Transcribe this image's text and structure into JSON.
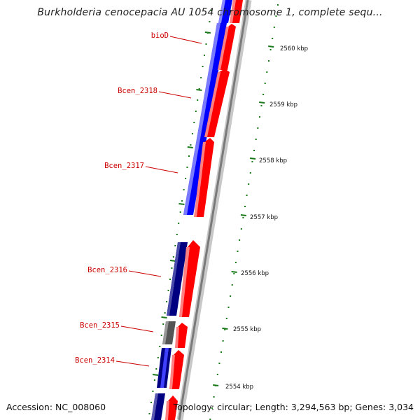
{
  "title": "Burkholderia cenocepacia AU 1054 chromosome 1, complete sequ...",
  "accession": "Accession: NC_008060",
  "summary": "Topology: circular; Length: 3,294,563 bp; Genes: 3,034",
  "colors": {
    "forward_gene": "#ff0000",
    "reverse_gene_light": "#0000ff",
    "reverse_gene_dark": "#000080",
    "grey_gene": "#555555",
    "backbone": "#9a9a9a",
    "ticks": "#1a7a1a",
    "label_text": "#cc0000",
    "label_line": "#cc0000"
  },
  "scale": {
    "ticks": [
      {
        "label": "2560 kbp"
      },
      {
        "label": "2559 kbp"
      },
      {
        "label": "2558 kbp"
      },
      {
        "label": "2557 kbp"
      },
      {
        "label": "2556 kbp"
      },
      {
        "label": "2555 kbp"
      },
      {
        "label": "2554 kbp"
      }
    ]
  },
  "gene_labels": [
    {
      "name": "bioD"
    },
    {
      "name": "Bcen_2318"
    },
    {
      "name": "Bcen_2317"
    },
    {
      "name": "Bcen_2316"
    },
    {
      "name": "Bcen_2315"
    },
    {
      "name": "Bcen_2314"
    }
  ]
}
